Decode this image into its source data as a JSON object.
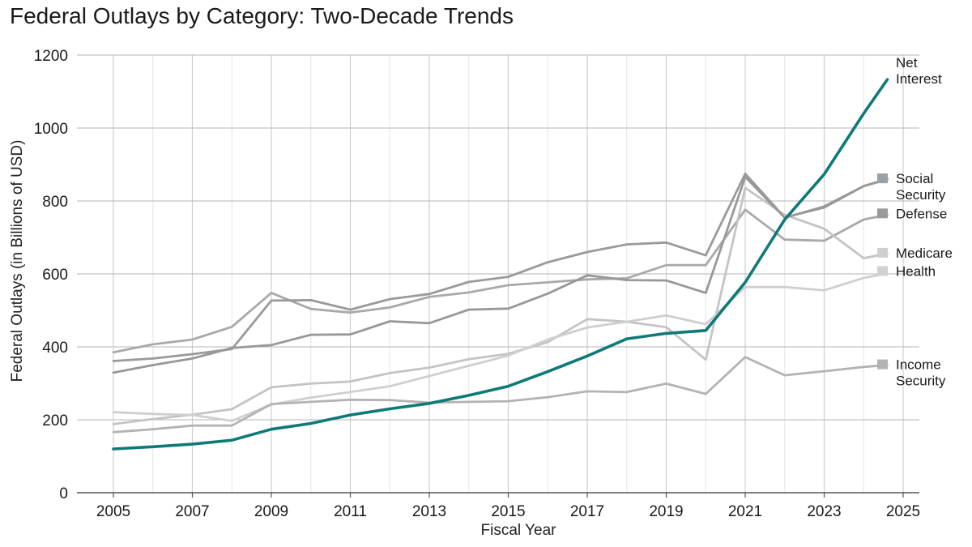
{
  "chart_data": {
    "type": "line",
    "title": "Federal Outlays by Category: Two-Decade Trends",
    "xlabel": "Fiscal Year",
    "ylabel": "Federal Outlays (in Billions of USD)",
    "xlim": [
      2005,
      2025
    ],
    "ylim": [
      0,
      1200
    ],
    "x_ticks": [
      2005,
      2007,
      2009,
      2011,
      2013,
      2015,
      2017,
      2019,
      2021,
      2023,
      2025
    ],
    "y_ticks": [
      0,
      200,
      400,
      600,
      800,
      1000,
      1200
    ],
    "grid": true,
    "legend": "direct-labels-right",
    "x": [
      2005,
      2006,
      2007,
      2008,
      2009,
      2010,
      2011,
      2012,
      2013,
      2014,
      2015,
      2016,
      2017,
      2018,
      2019,
      2020,
      2021,
      2022,
      2023,
      2024,
      2024.6
    ],
    "series": [
      {
        "name": "Social Security",
        "color": "#a9a9a9",
        "values": [
          385,
          407,
          420,
          455,
          548,
          504,
          494,
          508,
          537,
          549,
          569,
          577,
          585,
          588,
          624,
          624,
          776,
          694,
          691,
          749,
          762
        ]
      },
      {
        "name": "Defense",
        "color": "#9a9a9a",
        "values": [
          361,
          368,
          380,
          394,
          527,
          528,
          502,
          531,
          545,
          578,
          592,
          632,
          660,
          681,
          686,
          651,
          875,
          755,
          782,
          841,
          860
        ]
      },
      {
        "name": "Medicare",
        "color": "#c4c4c4",
        "values": [
          188,
          202,
          214,
          229,
          289,
          299,
          305,
          328,
          343,
          366,
          381,
          413,
          476,
          469,
          454,
          365,
          836,
          762,
          724,
          643,
          656
        ]
      },
      {
        "name": "Health",
        "color": "#cfcfcf",
        "values": [
          221,
          216,
          213,
          197,
          242,
          261,
          276,
          292,
          320,
          348,
          376,
          420,
          453,
          469,
          486,
          462,
          564,
          564,
          555,
          589,
          601
        ]
      },
      {
        "name": "Income Security",
        "color": "#b3b3b3",
        "values": [
          166,
          174,
          184,
          184,
          243,
          249,
          255,
          254,
          247,
          249,
          251,
          262,
          278,
          276,
          299,
          271,
          372,
          322,
          333,
          345,
          350
        ]
      },
      {
        "name": "Net Interest",
        "color": "#0e7a78",
        "highlight": true,
        "values": [
          120,
          126,
          133,
          144,
          174,
          190,
          213,
          230,
          245,
          267,
          292,
          332,
          375,
          422,
          437,
          445,
          577,
          749,
          873,
          1040,
          1133
        ]
      },
      {
        "name": "",
        "color": "#989898",
        "values": [
          329,
          350,
          368,
          397,
          405,
          433,
          434,
          470,
          465,
          502,
          505,
          546,
          596,
          583,
          582,
          548,
          866,
          754,
          785,
          841,
          859
        ]
      }
    ],
    "labels": [
      {
        "lines": [
          "Net",
          "Interest"
        ],
        "value": 1180,
        "marker": false
      },
      {
        "lines": [
          "Social",
          "Security"
        ],
        "value": 862,
        "marker": true,
        "color": "#9aa0a6"
      },
      {
        "lines": [
          "Defense"
        ],
        "value": 766,
        "marker": true,
        "color": "#9a9a9a"
      },
      {
        "lines": [
          "Medicare"
        ],
        "value": 658,
        "marker": true,
        "color": "#cfcfcf"
      },
      {
        "lines": [
          "Health"
        ],
        "value": 608,
        "marker": true,
        "color": "#d2d2d2"
      },
      {
        "lines": [
          "Income",
          "Security"
        ],
        "value": 352,
        "marker": true,
        "color": "#b3b3b3"
      }
    ]
  }
}
